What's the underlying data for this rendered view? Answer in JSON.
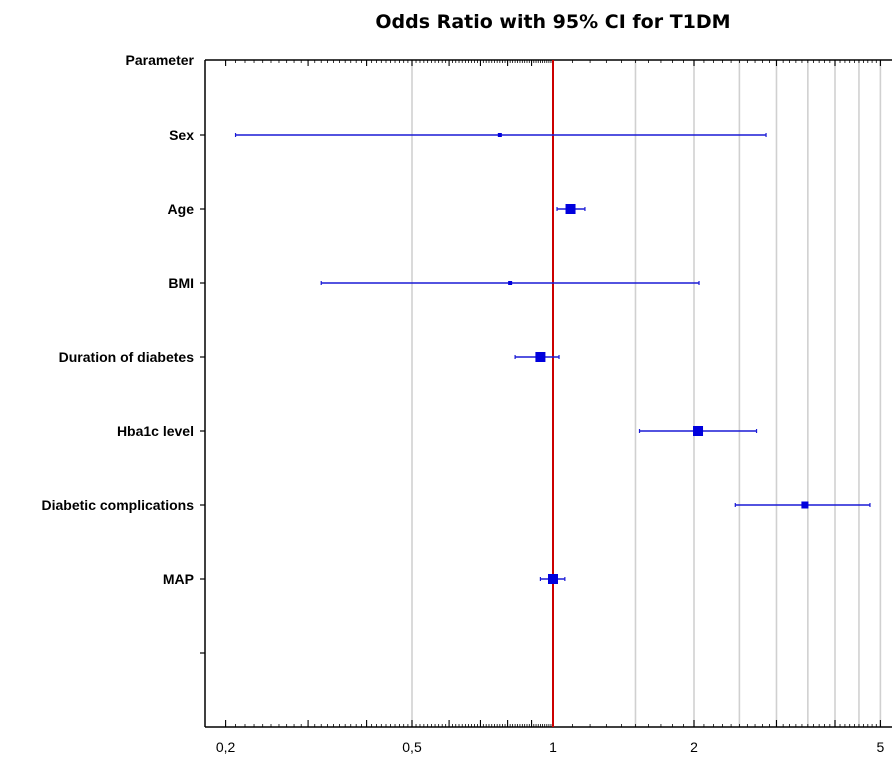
{
  "chart_data": {
    "type": "forest",
    "title": "Odds Ratio with 95% CI for T1DM",
    "row_header": "Parameter",
    "x_scale": "log",
    "xlim": [
      0.18,
      5.3
    ],
    "reference_line": 1,
    "x_ticks": [
      {
        "value": 0.2,
        "label": "0,2"
      },
      {
        "value": 0.5,
        "label": "0,5"
      },
      {
        "value": 1,
        "label": "1"
      },
      {
        "value": 2,
        "label": "2"
      },
      {
        "value": 5,
        "label": "5"
      }
    ],
    "grid": true,
    "rows": [
      {
        "label": "Sex",
        "or": 0.77,
        "lower": 0.21,
        "upper": 2.85,
        "weight": "small"
      },
      {
        "label": "Age",
        "or": 1.09,
        "lower": 1.02,
        "upper": 1.17,
        "weight": "large"
      },
      {
        "label": "BMI",
        "or": 0.81,
        "lower": 0.32,
        "upper": 2.05,
        "weight": "small"
      },
      {
        "label": "Duration of diabetes",
        "or": 0.94,
        "lower": 0.83,
        "upper": 1.03,
        "weight": "large"
      },
      {
        "label": "Hba1c level",
        "or": 2.04,
        "lower": 1.53,
        "upper": 2.72,
        "weight": "large"
      },
      {
        "label": "Diabetic complications",
        "or": 3.45,
        "lower": 2.45,
        "upper": 4.75,
        "weight": "medium"
      },
      {
        "label": "MAP",
        "or": 1.0,
        "lower": 0.94,
        "upper": 1.06,
        "weight": "large"
      }
    ]
  },
  "colors": {
    "point": "#0000dd",
    "ci_line": "#1a1ad6",
    "reference_line": "#cc0000",
    "grid": "#d0d0d0",
    "axis": "#000000"
  }
}
